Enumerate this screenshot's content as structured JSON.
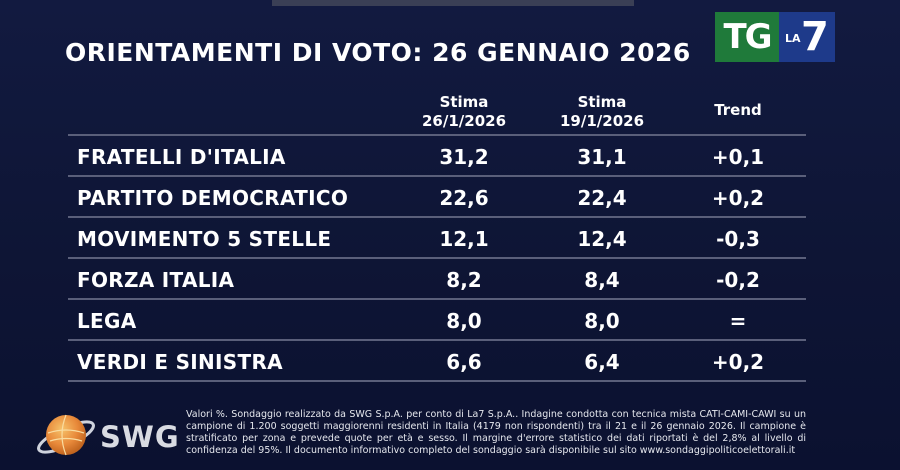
{
  "title": "ORIENTAMENTI DI VOTO: 26 GENNAIO 2026",
  "logo": {
    "tg": "TG",
    "la": "LA",
    "seven": "7"
  },
  "columns": {
    "stima1_line1": "Stima",
    "stima1_line2": "26/1/2026",
    "stima2_line1": "Stima",
    "stima2_line2": "19/1/2026",
    "trend": "Trend"
  },
  "rows": [
    {
      "party": "FRATELLI D'ITALIA",
      "v1": "31,2",
      "v2": "31,1",
      "trend": "+0,1"
    },
    {
      "party": "PARTITO DEMOCRATICO",
      "v1": "22,6",
      "v2": "22,4",
      "trend": "+0,2"
    },
    {
      "party": "MOVIMENTO 5 STELLE",
      "v1": "12,1",
      "v2": "12,4",
      "trend": "-0,3"
    },
    {
      "party": "FORZA ITALIA",
      "v1": "8,2",
      "v2": "8,4",
      "trend": "-0,2"
    },
    {
      "party": "LEGA",
      "v1": "8,0",
      "v2": "8,0",
      "trend": "="
    },
    {
      "party": "VERDI E SINISTRA",
      "v1": "6,6",
      "v2": "6,4",
      "trend": "+0,2"
    }
  ],
  "swg_logo_text": "SWG",
  "footnote": "Valori %. Sondaggio realizzato da SWG S.p.A. per conto di La7 S.p.A.. Indagine condotta con tecnica mista CATI-CAMI-CAWI su un campione di 1.200 soggetti maggiorenni residenti in Italia (4179 non rispondenti) tra il 21 e il 26 gennaio 2026. Il campione è stratificato per zona e prevede quote per età e sesso. Il margine d'errore statistico dei dati riportati è del 2,8% al livello di confidenza del 95%. Il documento informativo completo del sondaggio sarà disponibile sul sito www.sondaggipoliticoelettorali.it",
  "colors": {
    "background": "#0f1638",
    "tg_green": "#1f7a3a",
    "la7_blue": "#1e3a8a",
    "divider": "#5a5f7a"
  }
}
